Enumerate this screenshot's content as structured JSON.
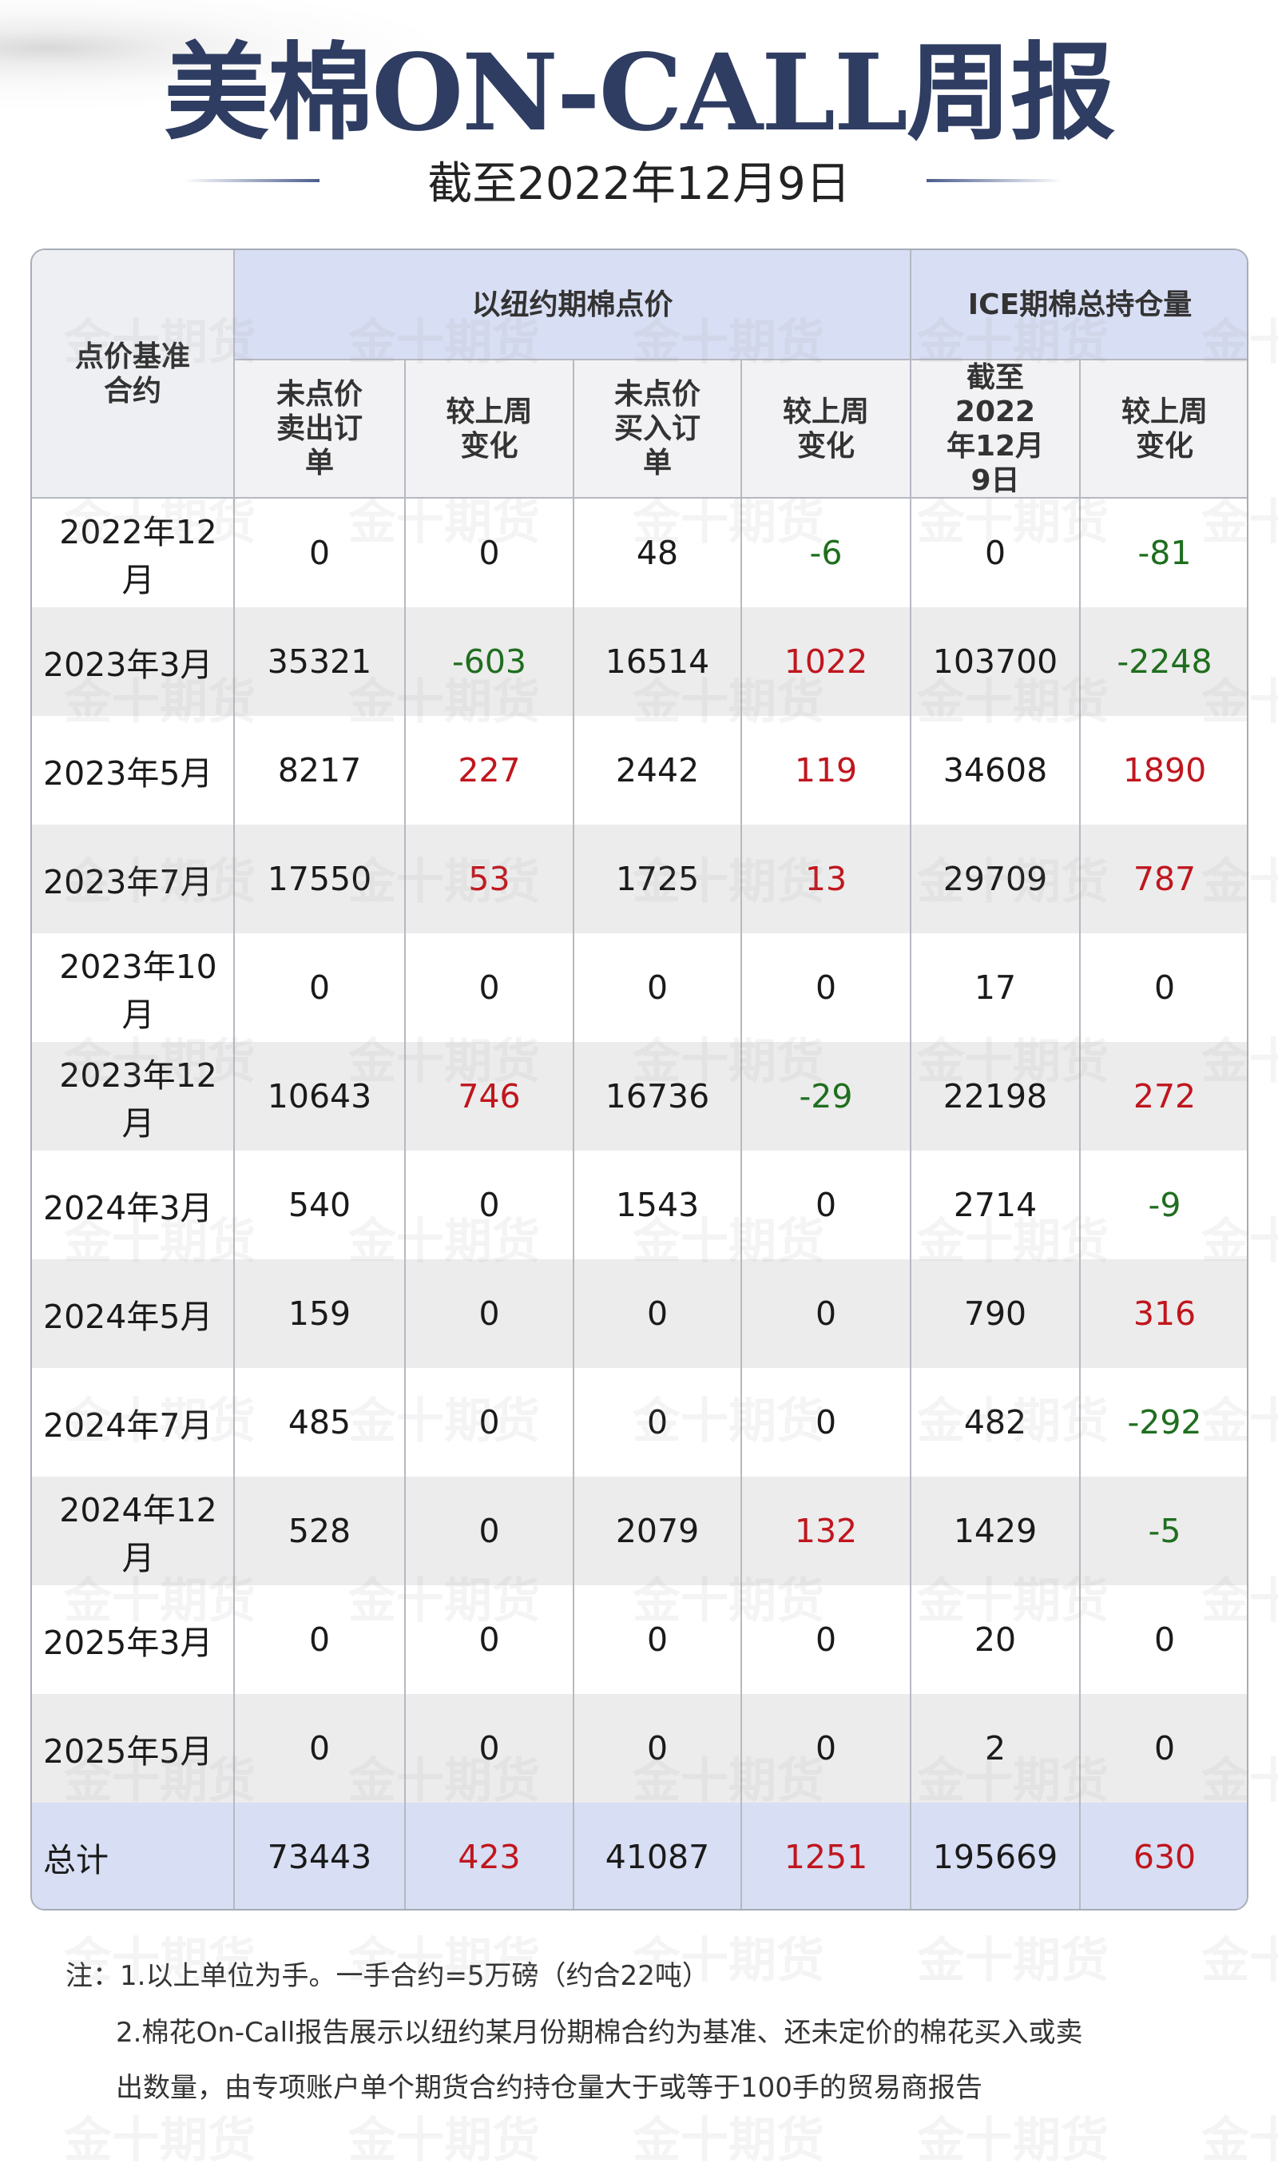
{
  "header": {
    "title": "美棉ON-CALL周报",
    "subtitle": "截至2022年12月9日"
  },
  "watermark": "金十期货",
  "table": {
    "corner": "点价基准合约",
    "groups": [
      "以纽约期棉点价",
      "ICE期棉总持仓量"
    ],
    "columns": [
      "未点价卖出订单",
      "较上周变化",
      "未点价买入订单",
      "较上周变化",
      "截至2022年12月9日",
      "较上周变化"
    ],
    "rows": [
      [
        "2022年12月",
        0,
        0,
        48,
        -6,
        0,
        -81
      ],
      [
        "2023年3月",
        35321,
        -603,
        16514,
        1022,
        103700,
        -2248
      ],
      [
        "2023年5月",
        8217,
        227,
        2442,
        119,
        34608,
        1890
      ],
      [
        "2023年7月",
        17550,
        53,
        1725,
        13,
        29709,
        787
      ],
      [
        "2023年10月",
        0,
        0,
        0,
        0,
        17,
        0
      ],
      [
        "2023年12月",
        10643,
        746,
        16736,
        -29,
        22198,
        272
      ],
      [
        "2024年3月",
        540,
        0,
        1543,
        0,
        2714,
        -9
      ],
      [
        "2024年5月",
        159,
        0,
        0,
        0,
        790,
        316
      ],
      [
        "2024年7月",
        485,
        0,
        0,
        0,
        482,
        -292
      ],
      [
        "2024年12月",
        528,
        0,
        2079,
        132,
        1429,
        -5
      ],
      [
        "2025年3月",
        0,
        0,
        0,
        0,
        20,
        0
      ],
      [
        "2025年5月",
        0,
        0,
        0,
        0,
        2,
        0
      ]
    ],
    "total": [
      "总计",
      73443,
      423,
      41087,
      1251,
      195669,
      630
    ]
  },
  "notes": [
    "注：1.以上单位为手。一手合约=5万磅（约合22吨）",
    "2.棉花On-Call报告展示以纽约某月份期棉合约为基准、还未定价的棉花买入或卖",
    "出数量，由专项账户单个期货合约持仓量大于或等于100手的贸易商报告"
  ]
}
